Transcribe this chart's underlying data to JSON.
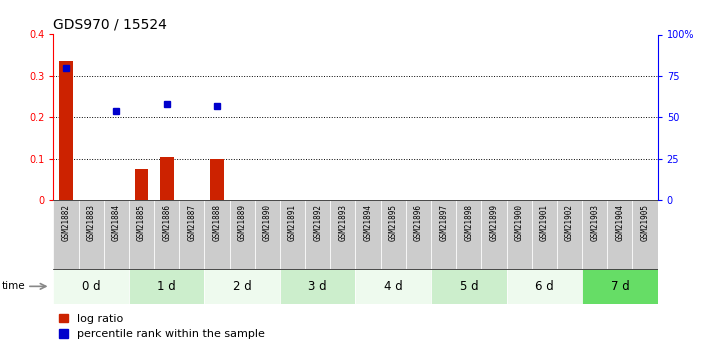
{
  "title": "GDS970 / 15524",
  "samples": [
    "GSM21882",
    "GSM21883",
    "GSM21884",
    "GSM21885",
    "GSM21886",
    "GSM21887",
    "GSM21888",
    "GSM21889",
    "GSM21890",
    "GSM21891",
    "GSM21892",
    "GSM21893",
    "GSM21894",
    "GSM21895",
    "GSM21896",
    "GSM21897",
    "GSM21898",
    "GSM21899",
    "GSM21900",
    "GSM21901",
    "GSM21902",
    "GSM21903",
    "GSM21904",
    "GSM21905"
  ],
  "log_ratio": [
    0.335,
    0.0,
    0.0,
    0.075,
    0.105,
    0.0,
    0.1,
    0.0,
    0.0,
    0.0,
    0.0,
    0.0,
    0.0,
    0.0,
    0.0,
    0.0,
    0.0,
    0.0,
    0.0,
    0.0,
    0.0,
    0.0,
    0.0,
    0.0
  ],
  "percentile_rank": [
    80.0,
    0.0,
    54.0,
    0.0,
    58.0,
    0.0,
    57.0,
    0.0,
    0.0,
    0.0,
    0.0,
    0.0,
    0.0,
    0.0,
    0.0,
    0.0,
    0.0,
    0.0,
    0.0,
    0.0,
    0.0,
    0.0,
    0.0,
    0.0
  ],
  "time_groups": [
    {
      "label": "0 d",
      "start": 0,
      "end": 3,
      "color": "#eefaee"
    },
    {
      "label": "1 d",
      "start": 3,
      "end": 6,
      "color": "#cceecc"
    },
    {
      "label": "2 d",
      "start": 6,
      "end": 9,
      "color": "#eefaee"
    },
    {
      "label": "3 d",
      "start": 9,
      "end": 12,
      "color": "#cceecc"
    },
    {
      "label": "4 d",
      "start": 12,
      "end": 15,
      "color": "#eefaee"
    },
    {
      "label": "5 d",
      "start": 15,
      "end": 18,
      "color": "#cceecc"
    },
    {
      "label": "6 d",
      "start": 18,
      "end": 21,
      "color": "#eefaee"
    },
    {
      "label": "7 d",
      "start": 21,
      "end": 24,
      "color": "#66dd66"
    }
  ],
  "ylim_left": [
    0,
    0.4
  ],
  "ylim_right": [
    0,
    100
  ],
  "yticks_left": [
    0.0,
    0.1,
    0.2,
    0.3,
    0.4
  ],
  "ytick_labels_left": [
    "0",
    "0.1",
    "0.2",
    "0.3",
    "0.4"
  ],
  "yticks_right": [
    0,
    25,
    50,
    75,
    100
  ],
  "ytick_labels_right": [
    "0",
    "25",
    "50",
    "75",
    "100%"
  ],
  "bar_color_red": "#cc2200",
  "bar_color_blue": "#0000cc",
  "sample_box_color": "#cccccc",
  "title_fontsize": 10,
  "tick_fontsize": 7,
  "legend_fontsize": 8,
  "time_label_fontsize": 8.5,
  "blue_square_size": 0.35
}
